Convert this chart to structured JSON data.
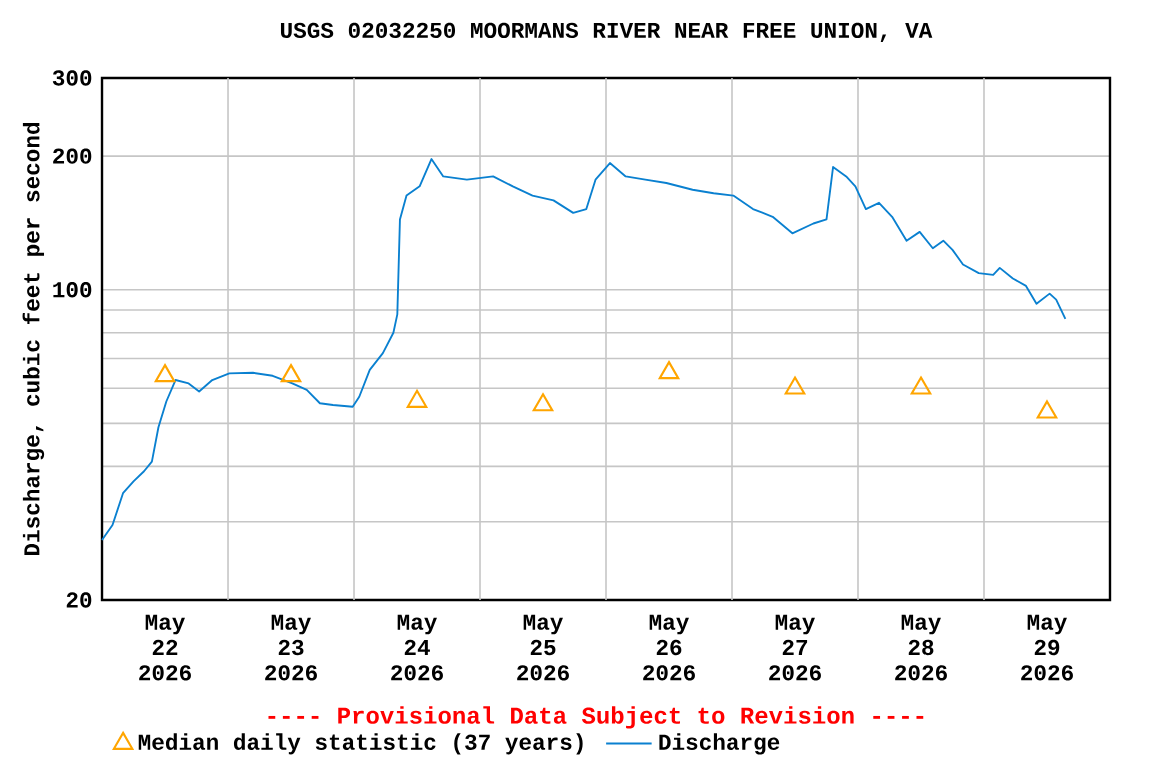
{
  "chart_data": {
    "type": "line",
    "title": "USGS 02032250 MOORMANS RIVER NEAR FREE UNION, VA",
    "ylabel": "Discharge, cubic feet per second",
    "annotations": [
      "---- Provisional Data Subject to Revision ----"
    ],
    "log": "y",
    "grid": true,
    "legend": "bottom",
    "xlim": [
      "2026-05-22",
      "2026-05-30"
    ],
    "ylim": [
      20,
      300
    ],
    "xticks": [
      {
        "value": "2026-05-22T12:00",
        "label": "May 22 2026"
      },
      {
        "value": "2026-05-23T12:00",
        "label": "May 23 2026"
      },
      {
        "value": "2026-05-24T12:00",
        "label": "May 24 2026"
      },
      {
        "value": "2026-05-25T12:00",
        "label": "May 25 2026"
      },
      {
        "value": "2026-05-26T12:00",
        "label": "May 26 2026"
      },
      {
        "value": "2026-05-27T12:00",
        "label": "May 27 2026"
      },
      {
        "value": "2026-05-28T12:00",
        "label": "May 28 2026"
      },
      {
        "value": "2026-05-29T12:00",
        "label": "May 29 2026"
      },
      {
        "value": "2026-05-23",
        "label": null
      },
      {
        "value": "2026-05-24",
        "label": null
      },
      {
        "value": "2026-05-25",
        "label": null
      },
      {
        "value": "2026-05-26",
        "label": null
      },
      {
        "value": "2026-05-27",
        "label": null
      },
      {
        "value": "2026-05-28",
        "label": null
      },
      {
        "value": "2026-05-29",
        "label": null
      }
    ],
    "yticks": [
      20,
      {
        "value": 30,
        "label": null
      },
      {
        "value": 40,
        "label": null
      },
      {
        "value": 50,
        "label": null
      },
      {
        "value": 60,
        "label": null
      },
      {
        "value": 70,
        "label": null
      },
      {
        "value": 80,
        "label": null
      },
      {
        "value": 90,
        "label": null
      },
      100,
      200,
      300
    ],
    "series": [
      {
        "name": "Median daily statistic (37 years)",
        "type": "scatter",
        "marker": "triangle",
        "color": "#ffa500",
        "x": [
          "2026-05-22T12:00",
          "2026-05-23T12:00",
          "2026-05-24T12:00",
          "2026-05-25T12:00",
          "2026-05-26T12:00",
          "2026-05-27T12:00",
          "2026-05-28T12:00",
          "2026-05-29T12:00"
        ],
        "values": [
          64,
          64,
          56,
          55,
          65,
          60,
          60,
          53
        ]
      },
      {
        "name": "Discharge",
        "marker": "none",
        "color": "#0a80d0",
        "x": [
          "2026-05-22T00:00",
          "2026-05-22T02:00",
          "2026-05-22T04:00",
          "2026-05-22T06:00",
          "2026-05-22T08:00",
          "2026-05-22T09:30",
          "2026-05-22T10:45",
          "2026-05-22T12:15",
          "2026-05-22T14:00",
          "2026-05-22T16:30",
          "2026-05-22T18:30",
          "2026-05-22T21:00",
          "2026-05-23T00:15",
          "2026-05-23T04:45",
          "2026-05-23T08:30",
          "2026-05-23T12:15",
          "2026-05-23T15:00",
          "2026-05-23T17:30",
          "2026-05-23T20:00",
          "2026-05-23T23:45",
          "2026-05-24T01:00",
          "2026-05-24T03:00",
          "2026-05-24T05:30",
          "2026-05-24T07:30",
          "2026-05-24T08:15",
          "2026-05-24T08:45",
          "2026-05-24T10:00",
          "2026-05-24T12:30",
          "2026-05-24T14:45",
          "2026-05-24T17:00",
          "2026-05-24T21:30",
          "2026-05-25T02:30",
          "2026-05-25T06:15",
          "2026-05-25T10:00",
          "2026-05-25T14:00",
          "2026-05-25T17:45",
          "2026-05-25T20:15",
          "2026-05-25T22:00",
          "2026-05-26T00:45",
          "2026-05-26T03:45",
          "2026-05-26T07:30",
          "2026-05-26T11:30",
          "2026-05-26T16:30",
          "2026-05-26T20:30",
          "2026-05-27T00:15",
          "2026-05-27T04:00",
          "2026-05-27T07:45",
          "2026-05-27T11:30",
          "2026-05-27T15:30",
          "2026-05-27T18:00",
          "2026-05-27T19:15",
          "2026-05-27T21:45",
          "2026-05-27T23:30",
          "2026-05-28T01:30",
          "2026-05-28T04:00",
          "2026-05-28T06:30",
          "2026-05-28T09:15",
          "2026-05-28T11:45",
          "2026-05-28T14:15",
          "2026-05-28T16:15",
          "2026-05-28T18:00",
          "2026-05-28T20:00",
          "2026-05-28T23:00",
          "2026-05-29T01:45",
          "2026-05-29T03:00",
          "2026-05-29T05:30",
          "2026-05-29T08:00",
          "2026-05-29T10:00",
          "2026-05-29T12:30",
          "2026-05-29T13:45",
          "2026-05-29T15:30"
        ],
        "values": [
          27.3,
          29.5,
          34.8,
          37,
          39,
          41,
          49,
          56,
          62.6,
          61.5,
          59,
          62.6,
          64.8,
          65,
          64,
          61.5,
          59.5,
          55.5,
          55,
          54.5,
          57.4,
          66,
          72,
          80,
          88,
          144,
          163,
          171,
          197,
          180,
          177,
          180,
          171,
          163,
          159,
          149,
          152,
          177,
          193,
          180,
          177,
          174,
          168,
          165,
          163,
          152,
          146,
          134,
          141,
          144,
          189,
          180,
          171,
          152,
          157,
          146,
          129,
          135,
          124,
          129,
          123,
          114,
          109,
          108,
          112,
          106,
          102,
          93,
          98,
          95,
          86
        ]
      }
    ]
  }
}
